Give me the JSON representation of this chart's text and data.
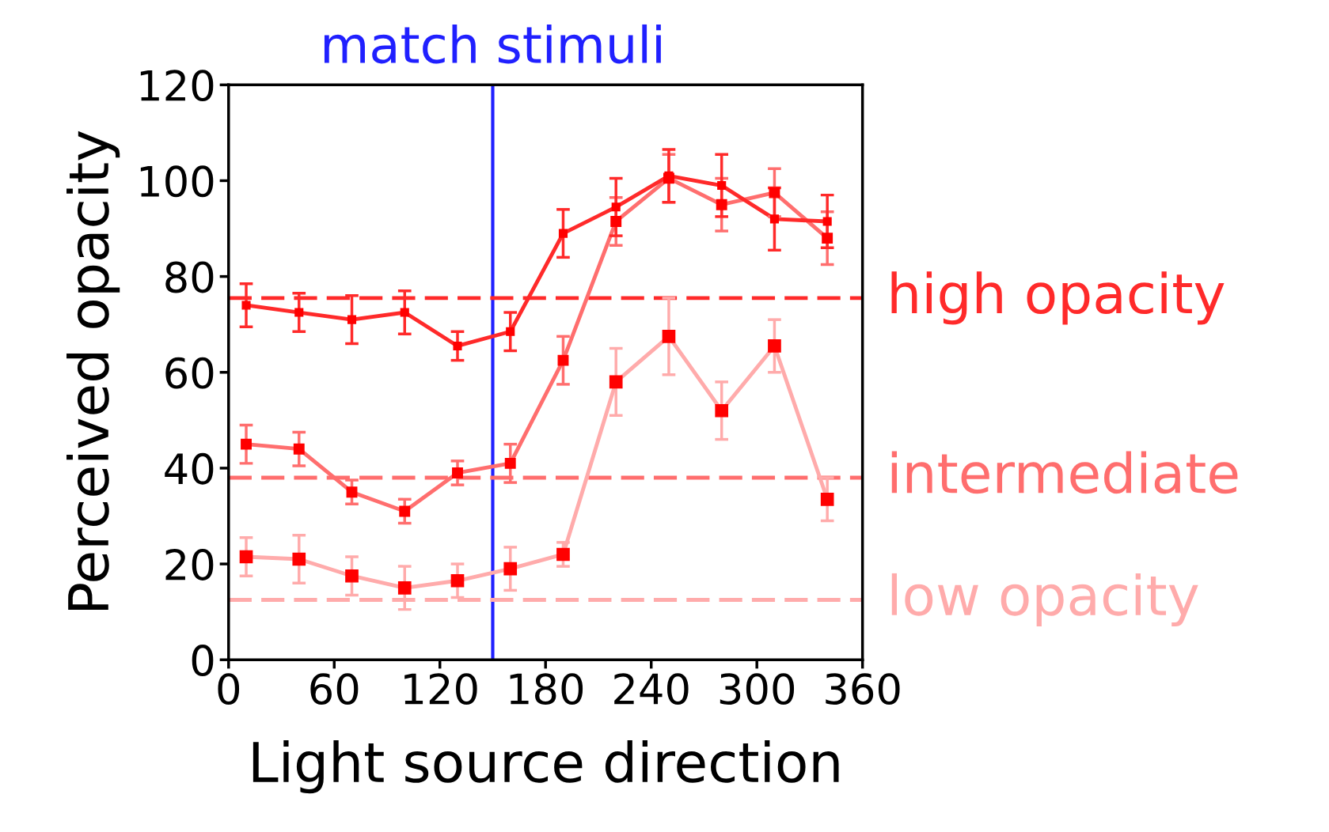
{
  "chart_data": {
    "type": "line",
    "xlabel": "Light source direction",
    "ylabel": "Perceived opacity",
    "x": [
      10,
      40,
      70,
      100,
      130,
      160,
      190,
      220,
      250,
      280,
      310,
      340
    ],
    "xlim": [
      0,
      360
    ],
    "xticks": [
      0,
      60,
      120,
      180,
      240,
      300,
      360
    ],
    "ylim": [
      0,
      120
    ],
    "yticks": [
      0,
      20,
      40,
      60,
      80,
      100,
      120
    ],
    "grid": false,
    "legend": false,
    "marker": "square",
    "line_style": "solid",
    "series": [
      {
        "color": "#ff2a2a",
        "values": [
          74,
          72.5,
          71,
          72.5,
          65.5,
          68.5,
          89,
          94.5,
          101,
          99,
          92,
          91.5
        ],
        "errors": [
          4.5,
          4,
          5,
          4.5,
          3,
          4,
          5,
          6,
          5.5,
          6.5,
          6.5,
          5.5
        ]
      },
      {
        "color": "#ff6e6e",
        "values": [
          45,
          44,
          35,
          31,
          39,
          41,
          62.5,
          91.5,
          100.5,
          95,
          97.5,
          88
        ],
        "errors": [
          4,
          3.5,
          2.5,
          2.5,
          2.5,
          4,
          5,
          5,
          5,
          5.5,
          5,
          5.5
        ]
      },
      {
        "color": "#ffabab",
        "values": [
          21.5,
          21,
          17.5,
          15,
          16.5,
          19,
          22,
          58,
          67.5,
          52,
          65.5,
          33.5
        ],
        "errors": [
          4,
          5,
          4,
          4.5,
          3.5,
          4.5,
          2.5,
          7,
          8,
          6,
          5.5,
          4.5
        ]
      }
    ],
    "ref_lines": [
      {
        "axis": "x",
        "value": 150,
        "label": "match stimuli",
        "color": "#2020ff",
        "line_style": "solid"
      },
      {
        "axis": "y",
        "value": 75.5,
        "label": "high opacity",
        "color": "#ff2a2a",
        "line_style": "dashed"
      },
      {
        "axis": "y",
        "value": 38,
        "label": "intermediate",
        "color": "#ff6e6e",
        "line_style": "dashed"
      },
      {
        "axis": "y",
        "value": 12.5,
        "label": "low opacity",
        "color": "#ffabab",
        "line_style": "dashed"
      }
    ]
  }
}
